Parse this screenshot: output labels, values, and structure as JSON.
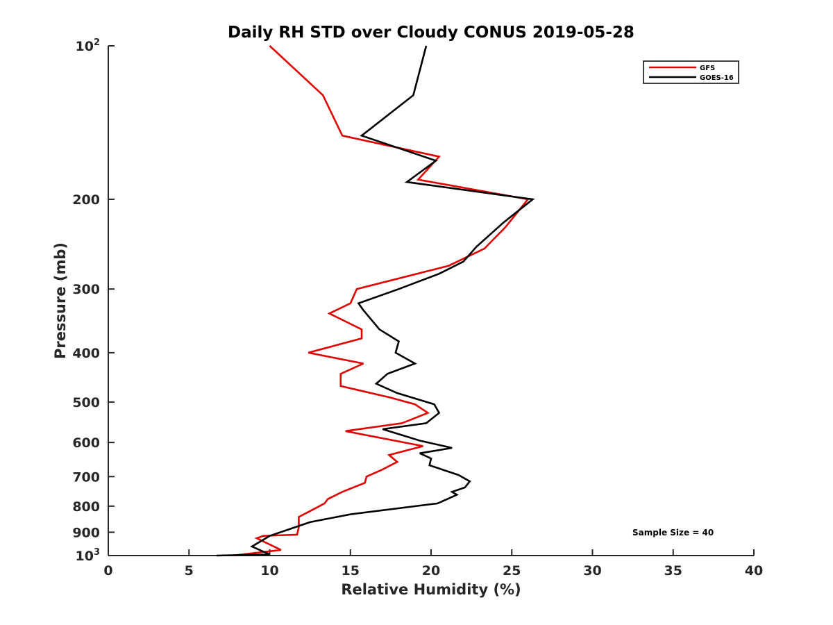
{
  "chart_data": {
    "type": "line",
    "title": "Daily RH STD over Cloudy CONUS 2019-05-28",
    "xlabel": "Relative Humidity (%)",
    "ylabel": "Pressure (mb)",
    "xlim": [
      0,
      40
    ],
    "ylim": [
      100,
      1000
    ],
    "y_scale": "log",
    "y_reversed": true,
    "grid": false,
    "legend_position": "top-right",
    "x_ticks": [
      "0",
      "5",
      "10",
      "15",
      "20",
      "25",
      "30",
      "35",
      "40"
    ],
    "y_ticks": [
      {
        "value": 100,
        "base": "10",
        "exp": "2"
      },
      {
        "value": 200,
        "label": "200"
      },
      {
        "value": 300,
        "label": "300"
      },
      {
        "value": 400,
        "label": "400"
      },
      {
        "value": 500,
        "label": "500"
      },
      {
        "value": 600,
        "label": "600"
      },
      {
        "value": 700,
        "label": "700"
      },
      {
        "value": 800,
        "label": "800"
      },
      {
        "value": 900,
        "label": "900"
      },
      {
        "value": 1000,
        "base": "10",
        "exp": "3"
      }
    ],
    "annotation": "Sample Size = 40",
    "series": [
      {
        "name": "GFS",
        "color": "#e00000",
        "points": [
          [
            10.0,
            100
          ],
          [
            13.3,
            125
          ],
          [
            14.5,
            150
          ],
          [
            20.5,
            165
          ],
          [
            19.2,
            183
          ],
          [
            26.0,
            200
          ],
          [
            24.6,
            227
          ],
          [
            23.3,
            250
          ],
          [
            21.1,
            270
          ],
          [
            15.4,
            300
          ],
          [
            15.0,
            320
          ],
          [
            13.7,
            335
          ],
          [
            15.7,
            360
          ],
          [
            15.7,
            375
          ],
          [
            12.4,
            400
          ],
          [
            15.8,
            420
          ],
          [
            14.4,
            440
          ],
          [
            14.4,
            465
          ],
          [
            17.5,
            490
          ],
          [
            19.0,
            505
          ],
          [
            19.8,
            525
          ],
          [
            18.2,
            550
          ],
          [
            14.7,
            570
          ],
          [
            19.5,
            610
          ],
          [
            17.4,
            635
          ],
          [
            17.9,
            655
          ],
          [
            16.9,
            680
          ],
          [
            16.0,
            700
          ],
          [
            15.9,
            720
          ],
          [
            14.5,
            750
          ],
          [
            13.6,
            775
          ],
          [
            13.4,
            790
          ],
          [
            12.6,
            815
          ],
          [
            11.8,
            840
          ],
          [
            11.8,
            880
          ],
          [
            11.7,
            910
          ],
          [
            9.6,
            915
          ],
          [
            9.2,
            925
          ],
          [
            10.7,
            975
          ],
          [
            7.7,
            1000
          ]
        ]
      },
      {
        "name": "GOES-16",
        "color": "#000000",
        "points": [
          [
            19.7,
            100
          ],
          [
            18.9,
            125
          ],
          [
            15.7,
            150
          ],
          [
            20.3,
            168
          ],
          [
            18.5,
            185
          ],
          [
            26.3,
            200
          ],
          [
            24.5,
            222
          ],
          [
            22.8,
            248
          ],
          [
            22.0,
            265
          ],
          [
            20.5,
            280
          ],
          [
            18.0,
            300
          ],
          [
            15.5,
            320
          ],
          [
            15.8,
            330
          ],
          [
            16.8,
            360
          ],
          [
            18.0,
            380
          ],
          [
            17.8,
            400
          ],
          [
            19.0,
            420
          ],
          [
            17.3,
            440
          ],
          [
            16.6,
            460
          ],
          [
            17.9,
            480
          ],
          [
            20.2,
            505
          ],
          [
            20.5,
            525
          ],
          [
            19.7,
            550
          ],
          [
            17.0,
            565
          ],
          [
            19.3,
            595
          ],
          [
            21.3,
            615
          ],
          [
            19.3,
            630
          ],
          [
            20.0,
            645
          ],
          [
            19.9,
            665
          ],
          [
            21.7,
            695
          ],
          [
            22.4,
            715
          ],
          [
            22.1,
            735
          ],
          [
            21.3,
            750
          ],
          [
            21.6,
            760
          ],
          [
            20.4,
            790
          ],
          [
            15.0,
            830
          ],
          [
            12.5,
            860
          ],
          [
            10.0,
            915
          ],
          [
            8.9,
            960
          ],
          [
            10.0,
            995
          ],
          [
            6.7,
            1000
          ]
        ]
      }
    ]
  }
}
